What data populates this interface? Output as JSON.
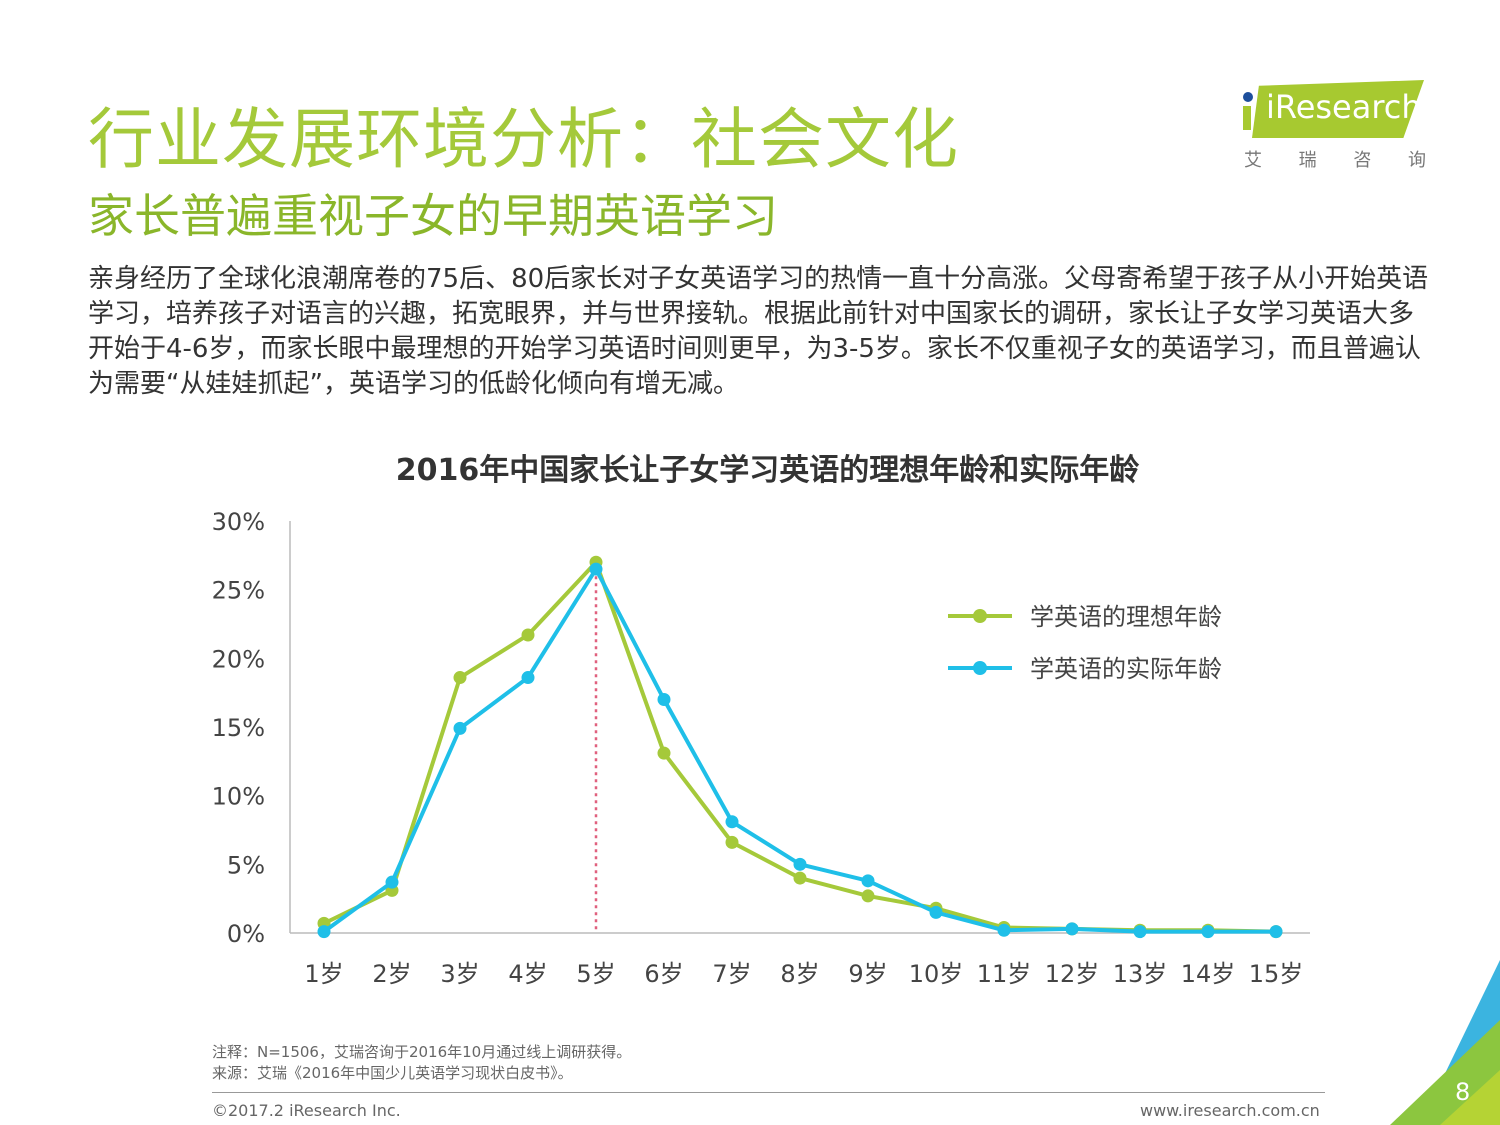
{
  "header": {
    "title": "行业发展环境分析：社会文化",
    "subtitle": "家长普遍重视子女的早期英语学习"
  },
  "logo": {
    "brand": "iResearch",
    "cn": [
      "艾",
      "瑞",
      "咨",
      "询"
    ]
  },
  "body_text": "亲身经历了全球化浪潮席卷的75后、80后家长对子女英语学习的热情一直十分高涨。父母寄希望于孩子从小开始英语学习，培养孩子对语言的兴趣，拓宽眼界，并与世界接轨。根据此前针对中国家长的调研，家长让子女学习英语大多开始于4-6岁，而家长眼中最理想的开始学习英语时间则更早，为3-5岁。家长不仅重视子女的英语学习，而且普遍认为需要“从娃娃抓起”，英语学习的低龄化倾向有增无减。",
  "chart_data": {
    "type": "line",
    "title": "2016年中国家长让子女学习英语的理想年龄和实际年龄",
    "categories": [
      "1岁",
      "2岁",
      "3岁",
      "4岁",
      "5岁",
      "6岁",
      "7岁",
      "8岁",
      "9岁",
      "10岁",
      "11岁",
      "12岁",
      "13岁",
      "14岁",
      "15岁"
    ],
    "yticks": [
      "0%",
      "5%",
      "10%",
      "15%",
      "20%",
      "25%",
      "30%"
    ],
    "ylim": [
      0,
      30
    ],
    "legend_position": "right",
    "series": [
      {
        "name": "学英语的理想年龄",
        "color": "#a5c93a",
        "values": [
          0.7,
          3.1,
          18.6,
          21.7,
          27.0,
          13.1,
          6.6,
          4.0,
          2.7,
          1.8,
          0.4,
          0.3,
          0.2,
          0.2,
          0.1
        ]
      },
      {
        "name": "学英语的实际年龄",
        "color": "#1fbfe8",
        "values": [
          0.1,
          3.7,
          14.9,
          18.6,
          26.5,
          17.0,
          8.1,
          5.0,
          3.8,
          1.5,
          0.2,
          0.3,
          0.1,
          0.1,
          0.1
        ]
      }
    ],
    "reference_line_category": "5岁"
  },
  "notes": {
    "note": "注释：N=1506，艾瑞咨询于2016年10月通过线上调研获得。",
    "source": "来源：艾瑞《2016年中国少儿英语学习现状白皮书》。"
  },
  "footer": {
    "copyright": "©2017.2 iResearch Inc.",
    "website": "www.iresearch.com.cn",
    "page": "8"
  }
}
